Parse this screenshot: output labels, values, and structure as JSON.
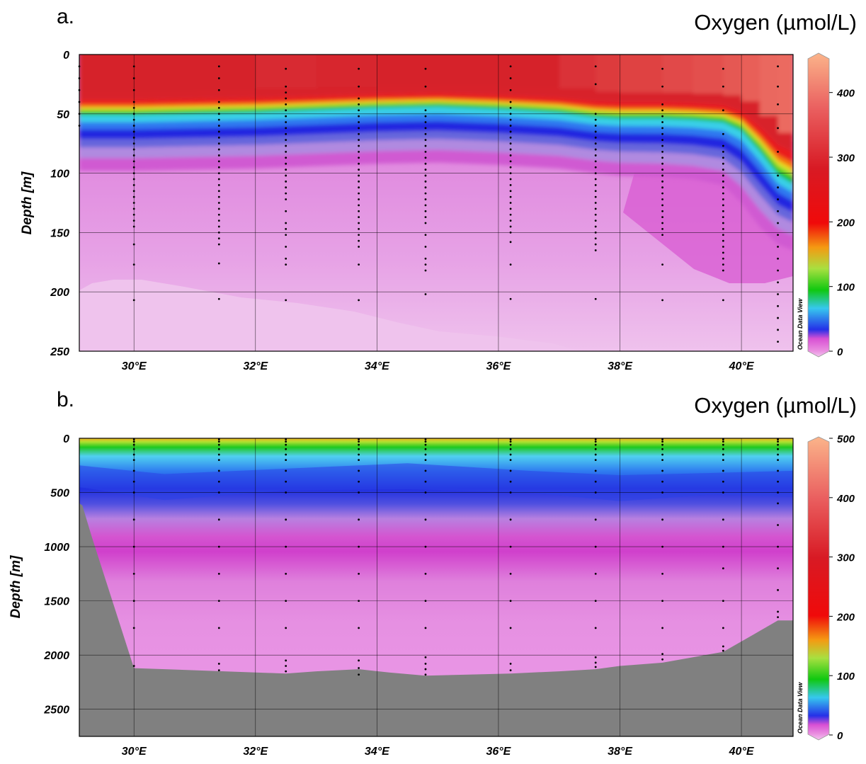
{
  "chart_data": [
    {
      "type": "heatmap",
      "panel_label": "a.",
      "title": "Oxygen (µmol/L)",
      "ylabel": "Depth [m]",
      "watermark": "Ocean Data View",
      "x_ticks": [
        "30°E",
        "32°E",
        "34°E",
        "36°E",
        "38°E",
        "40°E"
      ],
      "x_tick_values": [
        30,
        32,
        34,
        36,
        38,
        40
      ],
      "xlim": [
        29.1,
        40.85
      ],
      "y_ticks": [
        "0",
        "50",
        "100",
        "150",
        "200",
        "250"
      ],
      "y_tick_values": [
        0,
        50,
        100,
        150,
        200,
        250
      ],
      "ylim": [
        250,
        0
      ],
      "colorbar": {
        "range": [
          0,
          450
        ],
        "ticks": [
          "0",
          "100",
          "200",
          "300",
          "400"
        ],
        "tick_values": [
          0,
          100,
          200,
          300,
          400
        ]
      },
      "grid": true,
      "section_x": [
        29.1,
        30.0,
        31.0,
        32.0,
        33.0,
        34.0,
        35.0,
        36.0,
        37.0,
        37.6,
        38.0,
        38.7,
        39.2,
        39.7,
        40.0,
        40.3,
        40.6,
        40.85
      ],
      "oxycline_depth": [
        50,
        50,
        49,
        48,
        46,
        44,
        43,
        45,
        48,
        52,
        53,
        53,
        54,
        56,
        63,
        80,
        100,
        108
      ],
      "suboxic_depth": [
        98,
        98,
        97,
        96,
        94,
        92,
        91,
        93,
        96,
        100,
        102,
        103,
        105,
        110,
        125,
        145,
        160,
        165
      ],
      "surface_oxygen": [
        300,
        300,
        300,
        310,
        305,
        300,
        300,
        300,
        320,
        330,
        340,
        350,
        360,
        370,
        380,
        390,
        395,
        400
      ],
      "stations": [
        {
          "lon": 29.1,
          "depths": [
            10,
            20,
            30,
            40,
            50,
            60
          ]
        },
        {
          "lon": 30.0,
          "depths": [
            10,
            20,
            30,
            40,
            45,
            50,
            55,
            60,
            65,
            70,
            75,
            80,
            85,
            90,
            95,
            100,
            105,
            110,
            115,
            120,
            125,
            130,
            135,
            140,
            145,
            160,
            177,
            207
          ]
        },
        {
          "lon": 31.4,
          "depths": [
            10,
            20,
            30,
            40,
            45,
            50,
            55,
            60,
            65,
            70,
            75,
            80,
            85,
            90,
            95,
            100,
            105,
            110,
            115,
            120,
            125,
            130,
            135,
            140,
            145,
            150,
            155,
            160,
            176,
            206
          ]
        },
        {
          "lon": 32.5,
          "depths": [
            12,
            27,
            32,
            37,
            42,
            47,
            52,
            57,
            62,
            67,
            72,
            77,
            82,
            87,
            92,
            97,
            102,
            107,
            112,
            117,
            122,
            132,
            142,
            147,
            152,
            162,
            172,
            177,
            207
          ]
        },
        {
          "lon": 33.7,
          "depths": [
            12,
            27,
            37,
            42,
            47,
            52,
            57,
            62,
            67,
            72,
            77,
            82,
            87,
            92,
            97,
            102,
            107,
            112,
            117,
            122,
            127,
            132,
            137,
            142,
            147,
            152,
            157,
            162,
            177,
            207
          ]
        },
        {
          "lon": 34.8,
          "depths": [
            12,
            27,
            47,
            52,
            57,
            62,
            67,
            72,
            77,
            82,
            87,
            92,
            97,
            102,
            107,
            112,
            117,
            122,
            127,
            132,
            137,
            142,
            152,
            162,
            172,
            177,
            182,
            202
          ]
        },
        {
          "lon": 36.2,
          "depths": [
            10,
            20,
            30,
            40,
            45,
            50,
            55,
            60,
            65,
            70,
            75,
            80,
            85,
            90,
            95,
            100,
            105,
            110,
            115,
            120,
            125,
            130,
            135,
            140,
            145,
            150,
            158,
            177,
            206
          ]
        },
        {
          "lon": 37.6,
          "depths": [
            10,
            25,
            50,
            55,
            60,
            65,
            70,
            75,
            80,
            85,
            90,
            95,
            100,
            105,
            110,
            115,
            120,
            125,
            130,
            135,
            140,
            145,
            150,
            155,
            160,
            165,
            206
          ]
        },
        {
          "lon": 38.7,
          "depths": [
            12,
            27,
            42,
            47,
            52,
            57,
            62,
            67,
            72,
            77,
            82,
            87,
            92,
            97,
            102,
            107,
            112,
            117,
            122,
            127,
            132,
            137,
            142,
            147,
            152,
            177,
            207
          ]
        },
        {
          "lon": 39.7,
          "depths": [
            12,
            27,
            47,
            67,
            77,
            82,
            87,
            92,
            97,
            102,
            107,
            112,
            117,
            122,
            127,
            132,
            137,
            142,
            147,
            152,
            157,
            162,
            167,
            172,
            177,
            182,
            207
          ]
        },
        {
          "lon": 40.6,
          "depths": [
            10,
            27,
            42,
            62,
            82,
            102,
            112,
            122,
            132,
            142,
            152,
            162,
            172,
            182,
            192,
            202,
            212,
            222,
            232,
            242
          ]
        }
      ]
    },
    {
      "type": "heatmap",
      "panel_label": "b.",
      "title": "Oxygen (µmol/L)",
      "ylabel": "Depth [m]",
      "watermark": "Ocean Data View",
      "x_ticks": [
        "30°E",
        "32°E",
        "34°E",
        "36°E",
        "38°E",
        "40°E"
      ],
      "x_tick_values": [
        30,
        32,
        34,
        36,
        38,
        40
      ],
      "xlim": [
        29.1,
        40.85
      ],
      "y_ticks": [
        "0",
        "500",
        "1000",
        "1500",
        "2000",
        "2500"
      ],
      "y_tick_values": [
        0,
        500,
        1000,
        1500,
        2000,
        2500
      ],
      "ylim": [
        2750,
        0
      ],
      "colorbar": {
        "range": [
          0,
          500
        ],
        "ticks": [
          "0",
          "100",
          "200",
          "300",
          "400",
          "500"
        ],
        "tick_values": [
          0,
          100,
          200,
          300,
          400,
          500
        ]
      },
      "grid": true,
      "bathymetry": {
        "lon": [
          29.1,
          29.15,
          29.3,
          30.0,
          31.0,
          32.0,
          32.5,
          33.0,
          33.7,
          34.2,
          34.8,
          35.5,
          36.2,
          37.0,
          37.6,
          38.0,
          38.7,
          39.2,
          39.7,
          40.2,
          40.6,
          40.85
        ],
        "depth": [
          600,
          620,
          900,
          2120,
          2140,
          2160,
          2170,
          2150,
          2130,
          2160,
          2190,
          2180,
          2170,
          2150,
          2130,
          2100,
          2070,
          2020,
          1970,
          1810,
          1680,
          1680
        ]
      },
      "stations": [
        {
          "lon": 30.0,
          "depths": [
            10,
            30,
            60,
            100,
            150,
            200,
            300,
            400,
            500,
            750,
            1000,
            1250,
            1500,
            1750,
            2100
          ]
        },
        {
          "lon": 31.4,
          "depths": [
            10,
            30,
            60,
            100,
            150,
            200,
            300,
            400,
            500,
            750,
            1000,
            1250,
            1500,
            1750,
            2080,
            2140
          ]
        },
        {
          "lon": 32.5,
          "depths": [
            10,
            30,
            60,
            100,
            150,
            200,
            300,
            400,
            500,
            750,
            1000,
            1250,
            1500,
            1750,
            2050,
            2100,
            2150
          ]
        },
        {
          "lon": 33.7,
          "depths": [
            10,
            30,
            60,
            100,
            150,
            200,
            300,
            400,
            500,
            750,
            1000,
            1250,
            1500,
            1750,
            2050,
            2120,
            2180
          ]
        },
        {
          "lon": 34.8,
          "depths": [
            10,
            30,
            60,
            100,
            150,
            200,
            300,
            400,
            500,
            750,
            1000,
            1250,
            1500,
            1750,
            2020,
            2080,
            2130,
            2180
          ]
        },
        {
          "lon": 36.2,
          "depths": [
            10,
            30,
            60,
            100,
            150,
            200,
            300,
            400,
            500,
            750,
            1000,
            1250,
            1500,
            1750,
            2080,
            2140
          ]
        },
        {
          "lon": 37.6,
          "depths": [
            10,
            30,
            60,
            100,
            150,
            200,
            300,
            400,
            500,
            750,
            1000,
            1250,
            1500,
            1750,
            2020,
            2070,
            2110
          ]
        },
        {
          "lon": 38.7,
          "depths": [
            10,
            30,
            60,
            100,
            150,
            200,
            300,
            400,
            500,
            750,
            1000,
            1250,
            1500,
            1750,
            1990,
            2040
          ]
        },
        {
          "lon": 39.7,
          "depths": [
            10,
            30,
            60,
            100,
            150,
            200,
            300,
            400,
            500,
            750,
            1000,
            1200,
            1500,
            1750,
            1920,
            1960
          ]
        },
        {
          "lon": 40.6,
          "depths": [
            10,
            30,
            60,
            100,
            150,
            200,
            300,
            400,
            500,
            600,
            800,
            1000,
            1200,
            1400,
            1600,
            1650
          ]
        }
      ]
    }
  ]
}
